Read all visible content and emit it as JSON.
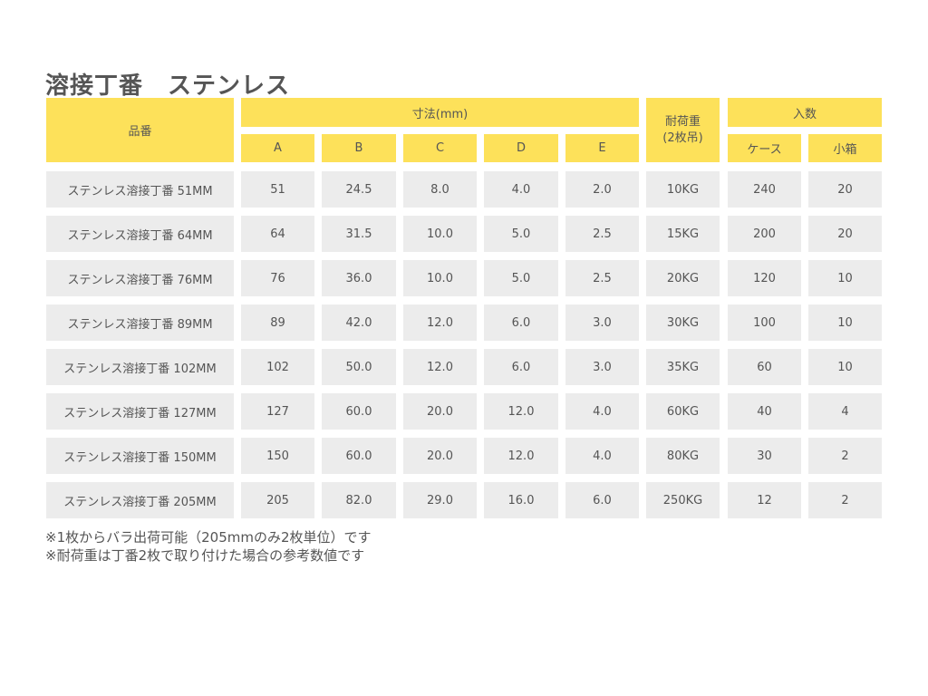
{
  "title": "溶接丁番　ステンレス",
  "headers": {
    "part_no": "品番",
    "dimensions": "寸法(mm)",
    "dims": [
      "A",
      "B",
      "C",
      "D",
      "E"
    ],
    "load": "耐荷重\n(2枚吊)",
    "quantity": "入数",
    "qty": [
      "ケース",
      "小箱"
    ]
  },
  "rows": [
    [
      "ステンレス溶接丁番 51MM",
      "51",
      "24.5",
      "8.0",
      "4.0",
      "2.0",
      "10KG",
      "240",
      "20"
    ],
    [
      "ステンレス溶接丁番 64MM",
      "64",
      "31.5",
      "10.0",
      "5.0",
      "2.5",
      "15KG",
      "200",
      "20"
    ],
    [
      "ステンレス溶接丁番 76MM",
      "76",
      "36.0",
      "10.0",
      "5.0",
      "2.5",
      "20KG",
      "120",
      "10"
    ],
    [
      "ステンレス溶接丁番 89MM",
      "89",
      "42.0",
      "12.0",
      "6.0",
      "3.0",
      "30KG",
      "100",
      "10"
    ],
    [
      "ステンレス溶接丁番 102MM",
      "102",
      "50.0",
      "12.0",
      "6.0",
      "3.0",
      "35KG",
      "60",
      "10"
    ],
    [
      "ステンレス溶接丁番 127MM",
      "127",
      "60.0",
      "20.0",
      "12.0",
      "4.0",
      "60KG",
      "40",
      "4"
    ],
    [
      "ステンレス溶接丁番 150MM",
      "150",
      "60.0",
      "20.0",
      "12.0",
      "4.0",
      "80KG",
      "30",
      "2"
    ],
    [
      "ステンレス溶接丁番 205MM",
      "205",
      "82.0",
      "29.0",
      "16.0",
      "6.0",
      "250KG",
      "12",
      "2"
    ]
  ],
  "notes": [
    "※1枚からバラ出荷可能（205mmのみ2枚単位）です",
    "※耐荷重は丁番2枚で取り付けた場合の参考数値です"
  ],
  "colors": {
    "header": "#fde15a",
    "row": "#ececec",
    "text": "#555555"
  }
}
